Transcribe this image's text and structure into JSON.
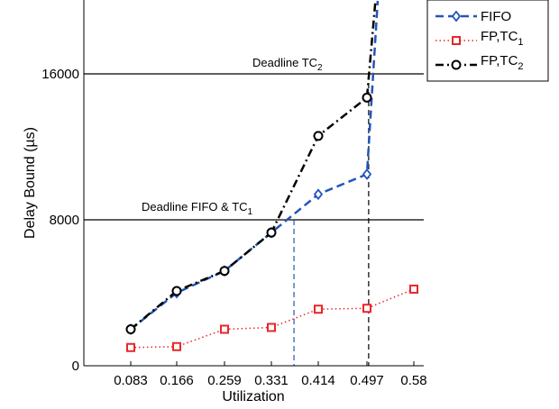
{
  "chart_data": {
    "type": "line",
    "xlabel": "Utilization",
    "ylabel": "Delay Bound (µs)",
    "x_ticks": [
      "0.083",
      "0.166",
      "0.259",
      "0.331",
      "0.414",
      "0.497",
      "0.58"
    ],
    "x": [
      0.083,
      0.166,
      0.259,
      0.331,
      0.414,
      0.497,
      0.58
    ],
    "xlim": [
      0.0,
      0.58
    ],
    "ylim": [
      0,
      20000
    ],
    "y_ticks": [
      0,
      8000,
      16000
    ],
    "y_tick_labels": [
      "0",
      "8000",
      "16000"
    ],
    "grid": false,
    "legend_position": "top-right",
    "series": [
      {
        "name": "FIFO",
        "color": "#2255bb",
        "style": "dashed",
        "marker": "diamond",
        "points": [
          [
            0.083,
            2000
          ],
          [
            0.166,
            4000
          ],
          [
            0.259,
            5200
          ],
          [
            0.331,
            7300
          ],
          [
            0.414,
            9400
          ],
          [
            0.497,
            10500
          ],
          [
            0.516,
            20000
          ]
        ]
      },
      {
        "name": "FP,TC1",
        "color": "#e8262b",
        "style": "dotted",
        "marker": "square",
        "points": [
          [
            0.083,
            1000
          ],
          [
            0.166,
            1050
          ],
          [
            0.259,
            2000
          ],
          [
            0.331,
            2100
          ],
          [
            0.414,
            3100
          ],
          [
            0.497,
            3150
          ],
          [
            0.58,
            4200
          ]
        ]
      },
      {
        "name": "FP,TC2",
        "color": "#000000",
        "style": "dashdot",
        "marker": "circle",
        "points": [
          [
            0.083,
            2000
          ],
          [
            0.166,
            4100
          ],
          [
            0.259,
            5200
          ],
          [
            0.331,
            7300
          ],
          [
            0.414,
            12600
          ],
          [
            0.497,
            14700
          ],
          [
            0.512,
            20000
          ]
        ]
      }
    ],
    "annotations": [
      {
        "text": "Deadline TC",
        "subscript": "2",
        "y": 16000
      },
      {
        "text": "Deadline FIFO & TC",
        "subscript": "1",
        "y": 8000
      }
    ],
    "reference_lines": [
      {
        "type": "horizontal",
        "y": 16000,
        "color": "#000000"
      },
      {
        "type": "horizontal",
        "y": 8000,
        "color": "#000000"
      },
      {
        "type": "vertical",
        "x": 0.371,
        "y_to": 8000,
        "color": "#2255bb",
        "style": "dashed"
      },
      {
        "type": "vertical",
        "x": 0.5,
        "y_to": 16000,
        "color": "#000000",
        "style": "dashed"
      }
    ]
  },
  "legend": {
    "items": [
      {
        "label": "FIFO",
        "sub": ""
      },
      {
        "label": "FP,TC",
        "sub": "1"
      },
      {
        "label": "FP,TC",
        "sub": "2"
      }
    ]
  }
}
